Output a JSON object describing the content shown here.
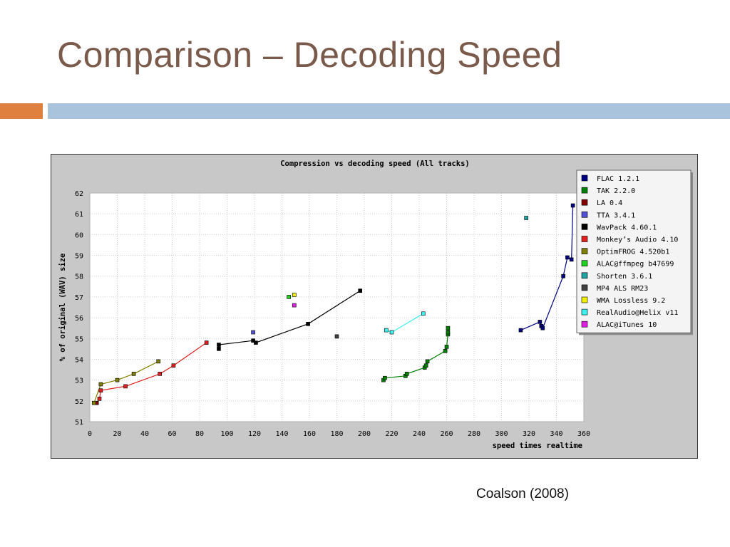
{
  "slide": {
    "title": "Comparison – Decoding Speed",
    "citation": "Coalson (2008)",
    "accent_colors": {
      "orange": "#e0803f",
      "blue": "#a9c3dc",
      "title": "#7a5a4a"
    }
  },
  "chart_data": {
    "type": "scatter",
    "title": "Compression vs decoding speed (All tracks)",
    "xlabel": "speed times realtime",
    "ylabel": "% of original (WAV) size",
    "xlim": [
      0,
      360
    ],
    "ylim": [
      51,
      62
    ],
    "xticks": [
      0,
      20,
      40,
      60,
      80,
      100,
      120,
      140,
      160,
      180,
      200,
      220,
      240,
      260,
      280,
      300,
      320,
      340,
      360
    ],
    "yticks": [
      51,
      52,
      53,
      54,
      55,
      56,
      57,
      58,
      59,
      60,
      61,
      62
    ],
    "grid": true,
    "legend_position": "top-right",
    "series": [
      {
        "name": "FLAC 1.2.1",
        "color": "#000080",
        "connected": true,
        "x": [
          314,
          328,
          329,
          330,
          345,
          348,
          351,
          352
        ],
        "y": [
          55.4,
          55.8,
          55.6,
          55.5,
          58.0,
          58.9,
          58.8,
          61.4
        ]
      },
      {
        "name": "TAK 2.2.0",
        "color": "#008000",
        "connected": true,
        "x": [
          214,
          215,
          230,
          231,
          244,
          245,
          246,
          259,
          260,
          261,
          261,
          261
        ],
        "y": [
          53.0,
          53.1,
          53.2,
          53.3,
          53.6,
          53.7,
          53.9,
          54.4,
          54.6,
          55.2,
          55.3,
          55.5
        ]
      },
      {
        "name": "LA 0.4",
        "color": "#800000",
        "connected": false,
        "x": [
          5
        ],
        "y": [
          51.9
        ]
      },
      {
        "name": "TTA 3.4.1",
        "color": "#5050d0",
        "connected": false,
        "x": [
          119
        ],
        "y": [
          55.3
        ]
      },
      {
        "name": "WavPack 4.60.1",
        "color": "#000000",
        "connected": true,
        "x": [
          94,
          94,
          119,
          121,
          159,
          197
        ],
        "y": [
          54.5,
          54.7,
          54.9,
          54.8,
          55.7,
          57.3
        ]
      },
      {
        "name": "Monkey’s Audio 4.10",
        "color": "#e02020",
        "connected": true,
        "x": [
          7,
          8,
          26,
          51,
          61,
          85
        ],
        "y": [
          52.1,
          52.5,
          52.7,
          53.3,
          53.7,
          54.8
        ]
      },
      {
        "name": "OptimFROG 4.520b1",
        "color": "#808000",
        "connected": true,
        "x": [
          3,
          8,
          20,
          32,
          50
        ],
        "y": [
          51.9,
          52.8,
          53.0,
          53.3,
          53.9
        ]
      },
      {
        "name": "ALAC@ffmpeg b47699",
        "color": "#20d020",
        "connected": false,
        "x": [
          145
        ],
        "y": [
          57.0
        ]
      },
      {
        "name": "Shorten 3.6.1",
        "color": "#20a0a0",
        "connected": false,
        "x": [
          318
        ],
        "y": [
          60.8
        ]
      },
      {
        "name": "MP4 ALS RM23",
        "color": "#404040",
        "connected": false,
        "x": [
          180
        ],
        "y": [
          55.1
        ]
      },
      {
        "name": "WMA Lossless 9.2",
        "color": "#f0f000",
        "connected": false,
        "x": [
          149
        ],
        "y": [
          57.1
        ]
      },
      {
        "name": "RealAudio@Helix v11",
        "color": "#40f0f0",
        "connected": true,
        "x": [
          216,
          220,
          243
        ],
        "y": [
          55.4,
          55.3,
          56.2
        ]
      },
      {
        "name": "ALAC@iTunes 10",
        "color": "#e020e0",
        "connected": false,
        "x": [
          149
        ],
        "y": [
          56.6
        ]
      }
    ]
  }
}
